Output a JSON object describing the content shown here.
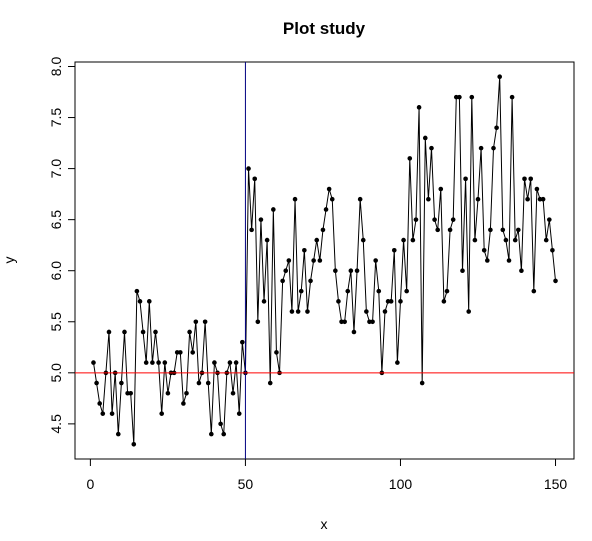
{
  "chart_data": {
    "type": "line",
    "title": "Plot study",
    "x_label": "x",
    "y_label": "y",
    "x": [
      1,
      2,
      3,
      4,
      5,
      6,
      7,
      8,
      9,
      10,
      11,
      12,
      13,
      14,
      15,
      16,
      17,
      18,
      19,
      20,
      21,
      22,
      23,
      24,
      25,
      26,
      27,
      28,
      29,
      30,
      31,
      32,
      33,
      34,
      35,
      36,
      37,
      38,
      39,
      40,
      41,
      42,
      43,
      44,
      45,
      46,
      47,
      48,
      49,
      50,
      51,
      52,
      53,
      54,
      55,
      56,
      57,
      58,
      59,
      60,
      61,
      62,
      63,
      64,
      65,
      66,
      67,
      68,
      69,
      70,
      71,
      72,
      73,
      74,
      75,
      76,
      77,
      78,
      79,
      80,
      81,
      82,
      83,
      84,
      85,
      86,
      87,
      88,
      89,
      90,
      91,
      92,
      93,
      94,
      95,
      96,
      97,
      98,
      99,
      100,
      101,
      102,
      103,
      104,
      105,
      106,
      107,
      108,
      109,
      110,
      111,
      112,
      113,
      114,
      115,
      116,
      117,
      118,
      119,
      120,
      121,
      122,
      123,
      124,
      125,
      126,
      127,
      128,
      129,
      130,
      131,
      132,
      133,
      134,
      135,
      136,
      137,
      138,
      139,
      140,
      141,
      142,
      143,
      144,
      145,
      146,
      147,
      148,
      149,
      150
    ],
    "series": [
      {
        "color": "#000000",
        "values": [
          5.1,
          4.9,
          4.7,
          4.6,
          5.0,
          5.4,
          4.6,
          5.0,
          4.4,
          4.9,
          5.4,
          4.8,
          4.8,
          4.3,
          5.8,
          5.7,
          5.4,
          5.1,
          5.7,
          5.1,
          5.4,
          5.1,
          4.6,
          5.1,
          4.8,
          5.0,
          5.0,
          5.2,
          5.2,
          4.7,
          4.8,
          5.4,
          5.2,
          5.5,
          4.9,
          5.0,
          5.5,
          4.9,
          4.4,
          5.1,
          5.0,
          4.5,
          4.4,
          5.0,
          5.1,
          4.8,
          5.1,
          4.6,
          5.3,
          5.0,
          7.0,
          6.4,
          6.9,
          5.5,
          6.5,
          5.7,
          6.3,
          4.9,
          6.6,
          5.2,
          5.0,
          5.9,
          6.0,
          6.1,
          5.6,
          6.7,
          5.6,
          5.8,
          6.2,
          5.6,
          5.9,
          6.1,
          6.3,
          6.1,
          6.4,
          6.6,
          6.8,
          6.7,
          6.0,
          5.7,
          5.5,
          5.5,
          5.8,
          6.0,
          5.4,
          6.0,
          6.7,
          6.3,
          5.6,
          5.5,
          5.5,
          6.1,
          5.8,
          5.0,
          5.6,
          5.7,
          5.7,
          6.2,
          5.1,
          5.7,
          6.3,
          5.8,
          7.1,
          6.3,
          6.5,
          7.6,
          4.9,
          7.3,
          6.7,
          7.2,
          6.5,
          6.4,
          6.8,
          5.7,
          5.8,
          6.4,
          6.5,
          7.7,
          7.7,
          6.0,
          6.9,
          5.6,
          7.7,
          6.3,
          6.7,
          7.2,
          6.2,
          6.1,
          6.4,
          7.2,
          7.4,
          7.9,
          6.4,
          6.3,
          6.1,
          7.7,
          6.3,
          6.4,
          6.0,
          6.9,
          6.7,
          6.9,
          5.8,
          6.8,
          6.7,
          6.7,
          6.3,
          6.5,
          6.2,
          5.9
        ]
      }
    ],
    "xlim": [
      -4.96,
      155.96
    ],
    "ylim": [
      4.156,
      8.044
    ],
    "xticks": [
      0,
      50,
      100,
      150
    ],
    "yticks": [
      4.5,
      {
        "value": 5,
        "label": "5.0"
      },
      5.5,
      {
        "value": 6,
        "label": "6.0"
      },
      6.5,
      {
        "value": 7,
        "label": "7.0"
      },
      7.5,
      {
        "value": 8,
        "label": "8.0"
      }
    ],
    "vlines": [
      {
        "value": 50,
        "color": "#000080"
      }
    ],
    "hlines": [
      {
        "value": 5,
        "color": "#ff0000"
      }
    ]
  }
}
